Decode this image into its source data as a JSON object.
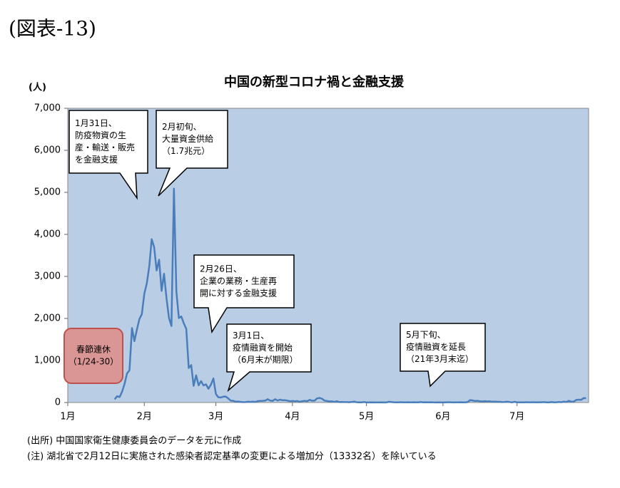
{
  "header": "(図表-13)",
  "chart_data": {
    "type": "line",
    "title": "中国の新型コロナ禍と金融支援",
    "y_label": "(人)",
    "x": [
      19,
      20,
      21,
      22,
      23,
      24,
      25,
      26,
      27,
      28,
      29,
      30,
      31,
      32,
      33,
      34,
      35,
      36,
      37,
      38,
      39,
      40,
      41,
      42,
      43,
      44,
      45,
      46,
      47,
      48,
      49,
      50,
      51,
      52,
      53,
      54,
      55,
      56,
      57,
      58,
      59,
      60,
      61,
      62,
      63,
      64,
      65,
      66,
      67,
      68,
      69,
      70,
      71,
      72,
      73,
      74,
      75,
      76,
      77,
      78,
      79,
      80,
      81,
      82,
      83,
      84,
      85,
      86,
      87,
      88,
      89,
      90,
      91,
      92,
      93,
      94,
      95,
      96,
      97,
      98,
      99,
      100,
      101,
      102,
      103,
      104,
      105,
      106,
      107,
      108,
      109,
      110,
      111,
      112,
      113,
      114,
      115,
      116,
      117,
      118,
      119,
      120,
      121,
      122,
      123,
      124,
      125,
      126,
      127,
      128,
      129,
      130,
      131,
      132,
      133,
      134,
      135,
      136,
      137,
      138,
      139,
      140,
      141,
      142,
      143,
      144,
      145,
      146,
      147,
      148,
      149,
      150,
      151,
      152,
      153,
      154,
      155,
      156,
      157,
      158,
      159,
      160,
      161,
      162,
      163,
      164,
      165,
      166,
      167,
      168,
      169,
      170,
      171,
      172,
      173,
      174,
      175,
      176,
      177,
      178,
      179,
      180,
      181,
      182,
      183,
      184,
      185,
      186,
      187,
      188,
      189,
      190,
      191,
      192,
      193,
      194,
      195,
      196,
      197,
      198,
      199,
      200,
      201,
      202,
      203,
      204,
      205,
      206,
      207,
      208,
      209,
      210
    ],
    "series": [
      {
        "color": "#4a7ebb",
        "values": [
          77,
          149,
          131,
          259,
          444,
          688,
          769,
          1771,
          1459,
          1737,
          1982,
          2102,
          2590,
          2829,
          3235,
          3887,
          3694,
          3143,
          3399,
          2656,
          3062,
          2478,
          2015,
          1820,
          5090,
          2641,
          2009,
          2048,
          1886,
          1749,
          820,
          889,
          397,
          648,
          409,
          508,
          406,
          433,
          327,
          427,
          573,
          202,
          125,
          119,
          139,
          143,
          99,
          44,
          40,
          19,
          24,
          15,
          8,
          11,
          20,
          16,
          21,
          13,
          34,
          39,
          41,
          46,
          78,
          46,
          39,
          78,
          47,
          67,
          55,
          54,
          45,
          31,
          35,
          31,
          35,
          19,
          30,
          39,
          32,
          62,
          42,
          46,
          99,
          108,
          89,
          46,
          36,
          26,
          27,
          16,
          30,
          11,
          12,
          10,
          11,
          6,
          12,
          22,
          6,
          3,
          4,
          12,
          2,
          1,
          3,
          2,
          1,
          2,
          4,
          1,
          1,
          17,
          14,
          7,
          3,
          5,
          8,
          4,
          5,
          7,
          4,
          6,
          3,
          4,
          11,
          3,
          7,
          5,
          7,
          4,
          2,
          3,
          2,
          2,
          5,
          7,
          6,
          1,
          3,
          3,
          6,
          3,
          3,
          11,
          57,
          49,
          36,
          40,
          28,
          25,
          32,
          26,
          29,
          18,
          22,
          19,
          17,
          11,
          13,
          21,
          12,
          3,
          19,
          3,
          3,
          5,
          3,
          8,
          5,
          7,
          7,
          5,
          6,
          7,
          8,
          3,
          4,
          11,
          4,
          7,
          12,
          6,
          22,
          14,
          39,
          21,
          22,
          61,
          68,
          64,
          105,
          101
        ]
      }
    ],
    "xlim": [
      0,
      211
    ],
    "xticks": [
      {
        "value": 0,
        "label": "1月"
      },
      {
        "value": 31,
        "label": "2月"
      },
      {
        "value": 60,
        "label": "3月"
      },
      {
        "value": 91,
        "label": "4月"
      },
      {
        "value": 121,
        "label": "5月"
      },
      {
        "value": 152,
        "label": "6月"
      },
      {
        "value": 182,
        "label": "7月"
      }
    ],
    "ylim": [
      0,
      7000
    ],
    "yticks": [
      0,
      {
        "value": 1000,
        "label": "1,000"
      },
      {
        "value": 2000,
        "label": "2,000"
      },
      {
        "value": 3000,
        "label": "3,000"
      },
      {
        "value": 4000,
        "label": "4,000"
      },
      {
        "value": 5000,
        "label": "5,000"
      },
      {
        "value": 6000,
        "label": "6,000"
      },
      {
        "value": 7000,
        "label": "7,000"
      }
    ],
    "plot_background": "#b9cde5",
    "annotations": [
      [
        "1月31日、",
        "防疫物資の生",
        "産・輸送・販売",
        "を金融支援"
      ],
      [
        "2月初旬、",
        "大量資金供給",
        "（1.7兆元）"
      ],
      [
        "2月26日、",
        "企業の業務・生産再",
        "開に対する金融支援"
      ],
      [
        "3月1日、",
        "疫情融資を開始",
        "（6月末が期限）"
      ],
      [
        "5月下旬、",
        "疫情融資を延長",
        "（21年3月末迄）"
      ],
      [
        "春節連休",
        "（1/24-30）"
      ]
    ]
  },
  "notes": [
    "(出所) 中国国家衛生健康委員会のデータを元に作成",
    "(注) 湖北省で2月12日に実施された感染者認定基準の変更による増加分（13332名）を除いている"
  ]
}
